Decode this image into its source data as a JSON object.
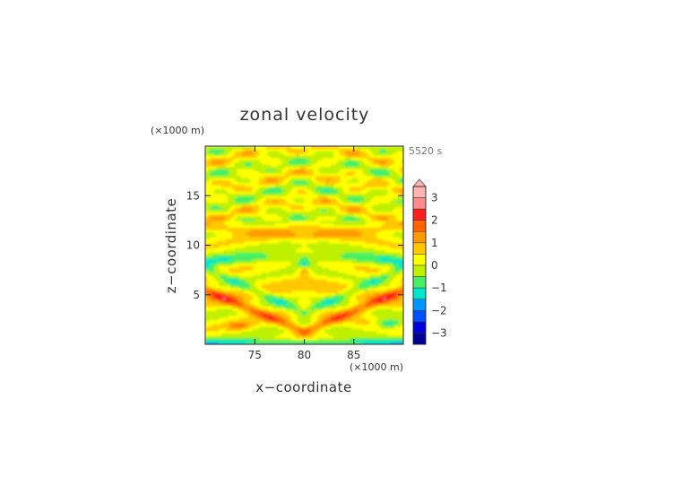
{
  "chart_data": {
    "type": "heatmap",
    "title": "zonal velocity",
    "time_label": "5520 s",
    "xlabel": "x−coordinate",
    "ylabel": "z−coordinate",
    "x_unit": "(×1000 m)",
    "y_unit": "(×1000 m)",
    "xlim": [
      70,
      90
    ],
    "ylim": [
      0,
      20
    ],
    "x_ticks": [
      {
        "value": 75,
        "label": "75"
      },
      {
        "value": 80,
        "label": "80"
      },
      {
        "value": 85,
        "label": "85"
      }
    ],
    "y_ticks": [
      {
        "value": 5,
        "label": "5"
      },
      {
        "value": 10,
        "label": "10"
      },
      {
        "value": 15,
        "label": "15"
      }
    ],
    "colorbar": {
      "range": [
        -3.5,
        3.5
      ],
      "extend_max": true,
      "tick_labels": [
        {
          "value": 3,
          "label": "3"
        },
        {
          "value": 2,
          "label": "2"
        },
        {
          "value": 1,
          "label": "1"
        },
        {
          "value": 0,
          "label": "0"
        },
        {
          "value": -1,
          "label": "−1"
        },
        {
          "value": -2,
          "label": "−2"
        },
        {
          "value": -3,
          "label": "−3"
        }
      ],
      "levels": [
        {
          "value": 3.25,
          "color": "#ffb4b4"
        },
        {
          "value": 2.75,
          "color": "#ff8c8c"
        },
        {
          "value": 2.25,
          "color": "#ff1e1e"
        },
        {
          "value": 1.75,
          "color": "#ff6400"
        },
        {
          "value": 1.25,
          "color": "#ff9a00"
        },
        {
          "value": 0.75,
          "color": "#ffc800"
        },
        {
          "value": 0.25,
          "color": "#ffff00"
        },
        {
          "value": -0.25,
          "color": "#bef000"
        },
        {
          "value": -0.75,
          "color": "#46f064"
        },
        {
          "value": -1.25,
          "color": "#00e6c8"
        },
        {
          "value": -1.75,
          "color": "#0096ff"
        },
        {
          "value": -2.25,
          "color": "#0050ff"
        },
        {
          "value": -2.75,
          "color": "#0000dc"
        },
        {
          "value": -3.25,
          "color": "#000096"
        }
      ]
    }
  }
}
